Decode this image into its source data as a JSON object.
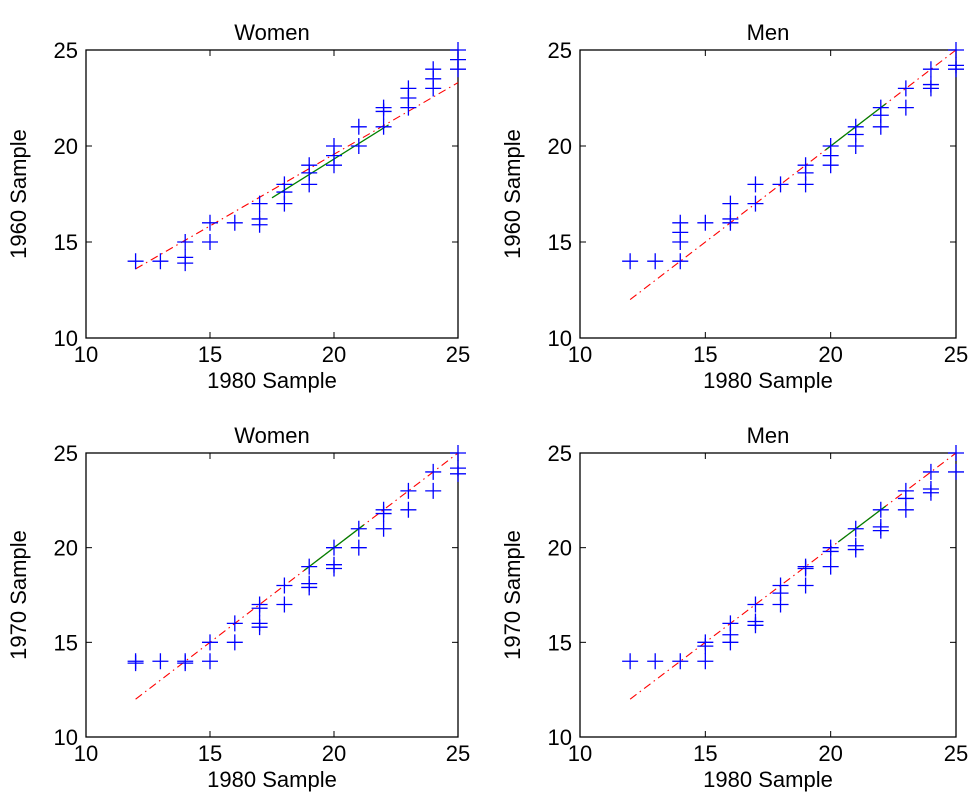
{
  "chart_data": [
    {
      "type": "scatter",
      "title": "Women",
      "xlabel": "1980 Sample",
      "ylabel": "1960 Sample",
      "xlim": [
        10,
        25
      ],
      "ylim": [
        10,
        25
      ],
      "xticks": [
        10,
        15,
        20,
        25
      ],
      "yticks": [
        10,
        15,
        20,
        25
      ],
      "marker": "+",
      "marker_color": "#0000ff",
      "reference_line": {
        "style": "dash-dot",
        "color": "#ff0000",
        "x": [
          12,
          25
        ],
        "y": [
          13.6,
          23.3
        ]
      },
      "fit_segment": {
        "color": "#008000",
        "x": [
          17.5,
          22.2
        ],
        "y": [
          17.3,
          21.1
        ]
      },
      "points": [
        [
          12,
          14
        ],
        [
          13,
          14
        ],
        [
          14,
          15
        ],
        [
          14,
          14.2
        ],
        [
          14,
          13.9
        ],
        [
          15,
          16
        ],
        [
          15,
          15
        ],
        [
          16,
          16
        ],
        [
          17,
          17
        ],
        [
          17,
          16.2
        ],
        [
          17,
          15.9
        ],
        [
          18,
          18
        ],
        [
          18,
          17.6
        ],
        [
          18,
          17
        ],
        [
          19,
          19
        ],
        [
          19,
          18.6
        ],
        [
          19,
          18
        ],
        [
          20,
          20
        ],
        [
          20,
          19.5
        ],
        [
          20,
          19
        ],
        [
          21,
          21
        ],
        [
          21,
          20
        ],
        [
          22,
          22
        ],
        [
          22,
          21.8
        ],
        [
          22,
          21
        ],
        [
          23,
          23
        ],
        [
          23,
          22.5
        ],
        [
          23,
          22
        ],
        [
          24,
          24
        ],
        [
          24,
          23.5
        ],
        [
          24,
          23
        ],
        [
          25,
          25
        ],
        [
          25,
          24.5
        ],
        [
          25,
          24
        ]
      ]
    },
    {
      "type": "scatter",
      "title": "Men",
      "xlabel": "1980 Sample",
      "ylabel": "1960 Sample",
      "xlim": [
        10,
        25
      ],
      "ylim": [
        10,
        25
      ],
      "xticks": [
        10,
        15,
        20,
        25
      ],
      "yticks": [
        10,
        15,
        20,
        25
      ],
      "marker": "+",
      "marker_color": "#0000ff",
      "reference_line": {
        "style": "dash-dot",
        "color": "#ff0000",
        "x": [
          12,
          25
        ],
        "y": [
          12,
          25
        ]
      },
      "fit_segment": {
        "color": "#008000",
        "x": [
          19.8,
          22.2
        ],
        "y": [
          19.8,
          22.2
        ]
      },
      "points": [
        [
          12,
          14
        ],
        [
          13,
          14
        ],
        [
          14,
          16
        ],
        [
          14,
          15.5
        ],
        [
          14,
          15
        ],
        [
          14,
          14
        ],
        [
          15,
          16
        ],
        [
          16,
          17
        ],
        [
          16,
          16.2
        ],
        [
          16,
          16
        ],
        [
          17,
          18
        ],
        [
          17,
          17
        ],
        [
          18,
          18
        ],
        [
          19,
          19
        ],
        [
          19,
          18.6
        ],
        [
          19,
          18
        ],
        [
          20,
          20
        ],
        [
          20,
          19.5
        ],
        [
          20,
          19
        ],
        [
          21,
          21
        ],
        [
          21,
          20.6
        ],
        [
          21,
          20
        ],
        [
          22,
          22
        ],
        [
          22,
          21.6
        ],
        [
          22,
          21
        ],
        [
          23,
          23
        ],
        [
          23,
          22
        ],
        [
          24,
          24
        ],
        [
          24,
          23.2
        ],
        [
          24,
          23
        ],
        [
          25,
          25
        ],
        [
          25,
          24.2
        ],
        [
          25,
          24
        ]
      ]
    },
    {
      "type": "scatter",
      "title": "Women",
      "xlabel": "1980 Sample",
      "ylabel": "1970 Sample",
      "xlim": [
        10,
        25
      ],
      "ylim": [
        10,
        25
      ],
      "xticks": [
        10,
        15,
        20,
        25
      ],
      "yticks": [
        10,
        15,
        20,
        25
      ],
      "marker": "+",
      "marker_color": "#0000ff",
      "reference_line": {
        "style": "dash-dot",
        "color": "#ff0000",
        "x": [
          12,
          25
        ],
        "y": [
          12,
          25
        ]
      },
      "fit_segment": {
        "color": "#008000",
        "x": [
          18.8,
          21.2
        ],
        "y": [
          18.8,
          21.2
        ]
      },
      "points": [
        [
          12,
          14
        ],
        [
          12,
          13.9
        ],
        [
          13,
          14
        ],
        [
          14,
          14
        ],
        [
          14,
          13.9
        ],
        [
          15,
          15
        ],
        [
          15,
          14
        ],
        [
          16,
          16
        ],
        [
          16,
          15
        ],
        [
          17,
          17
        ],
        [
          17,
          16.8
        ],
        [
          17,
          16
        ],
        [
          17,
          15.8
        ],
        [
          18,
          18
        ],
        [
          18,
          17
        ],
        [
          19,
          19
        ],
        [
          19,
          18.1
        ],
        [
          19,
          17.9
        ],
        [
          20,
          20
        ],
        [
          20,
          19.1
        ],
        [
          20,
          18.9
        ],
        [
          21,
          21
        ],
        [
          21,
          20
        ],
        [
          22,
          22
        ],
        [
          22,
          21.8
        ],
        [
          22,
          21
        ],
        [
          23,
          23
        ],
        [
          23,
          22
        ],
        [
          24,
          24
        ],
        [
          24,
          23
        ],
        [
          25,
          25
        ],
        [
          25,
          24.2
        ],
        [
          25,
          23.9
        ]
      ]
    },
    {
      "type": "scatter",
      "title": "Men",
      "xlabel": "1980 Sample",
      "ylabel": "1970 Sample",
      "xlim": [
        10,
        25
      ],
      "ylim": [
        10,
        25
      ],
      "xticks": [
        10,
        15,
        20,
        25
      ],
      "yticks": [
        10,
        15,
        20,
        25
      ],
      "marker": "+",
      "marker_color": "#0000ff",
      "reference_line": {
        "style": "dash-dot",
        "color": "#ff0000",
        "x": [
          12,
          25
        ],
        "y": [
          12,
          25
        ]
      },
      "fit_segment": {
        "color": "#008000",
        "x": [
          20.3,
          22.2
        ],
        "y": [
          20.3,
          22.2
        ]
      },
      "points": [
        [
          12,
          14
        ],
        [
          13,
          14
        ],
        [
          14,
          14
        ],
        [
          15,
          15
        ],
        [
          15,
          14.8
        ],
        [
          15,
          14
        ],
        [
          16,
          16
        ],
        [
          16,
          15.4
        ],
        [
          16,
          15
        ],
        [
          17,
          17
        ],
        [
          17,
          16.1
        ],
        [
          17,
          15.9
        ],
        [
          18,
          18
        ],
        [
          18,
          17.6
        ],
        [
          18,
          17
        ],
        [
          19,
          19
        ],
        [
          19,
          18.9
        ],
        [
          19,
          18
        ],
        [
          20,
          20
        ],
        [
          20,
          19.8
        ],
        [
          20,
          19
        ],
        [
          21,
          21
        ],
        [
          21,
          20.1
        ],
        [
          21,
          19.9
        ],
        [
          22,
          22
        ],
        [
          22,
          21.1
        ],
        [
          22,
          20.9
        ],
        [
          23,
          23
        ],
        [
          23,
          22.6
        ],
        [
          23,
          22
        ],
        [
          24,
          24
        ],
        [
          24,
          23.1
        ],
        [
          24,
          22.9
        ],
        [
          25,
          25
        ],
        [
          25,
          24
        ]
      ]
    }
  ]
}
